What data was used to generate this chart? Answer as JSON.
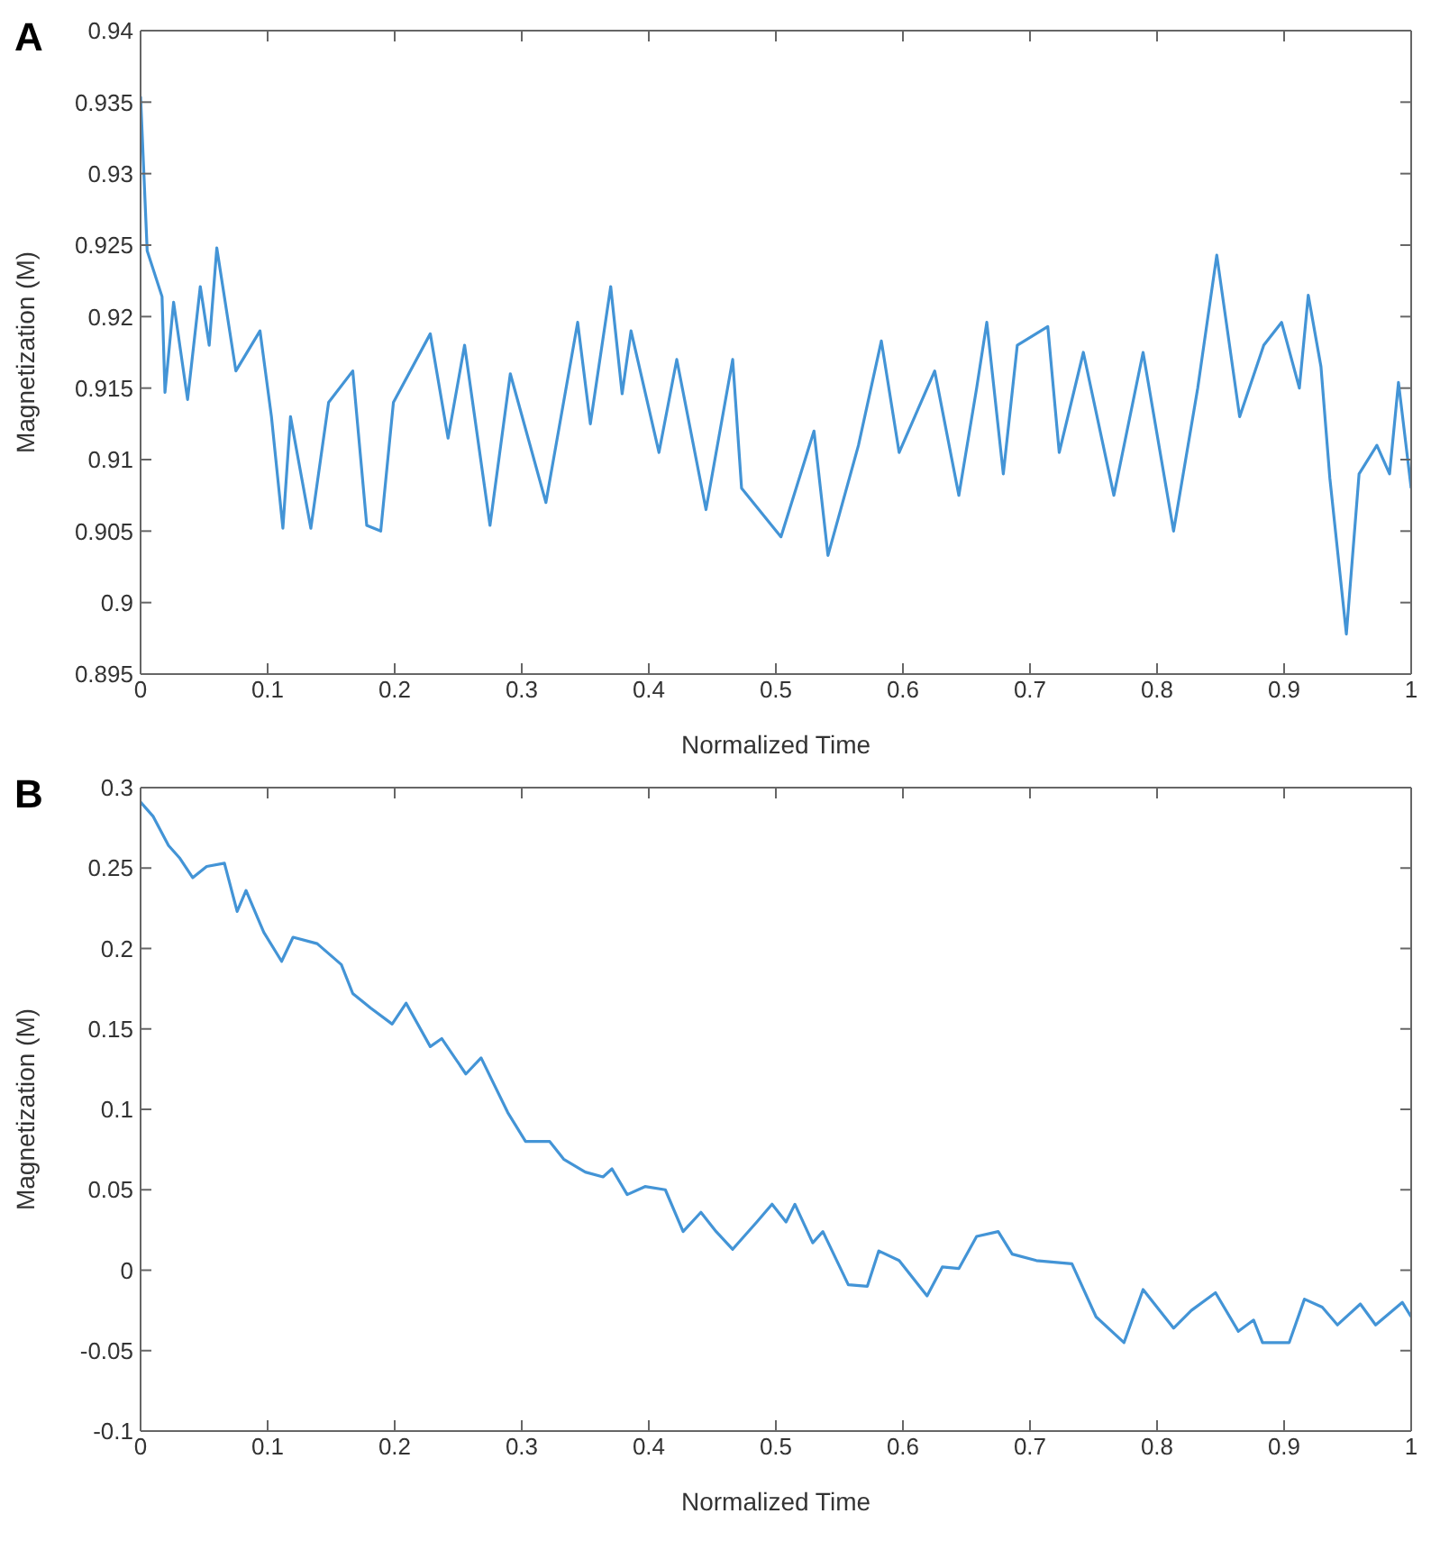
{
  "chart_data": [
    {
      "type": "line",
      "title": "A",
      "xlabel": "Normalized Time",
      "ylabel": "Magnetization (M)",
      "xlim": [
        0,
        1
      ],
      "xticks": [
        0,
        0.1,
        0.2,
        0.3,
        0.4,
        0.5,
        0.6,
        0.7,
        0.8,
        0.9,
        1
      ],
      "ylim": [
        0.895,
        0.94
      ],
      "yticks": [
        0.895,
        0.9,
        0.905,
        0.91,
        0.915,
        0.92,
        0.925,
        0.93,
        0.935,
        0.94
      ],
      "grid": false,
      "legend": false,
      "marker": "none",
      "line_style": "solid",
      "series": [
        {
          "color": "#4394d6",
          "x": [
            0,
            0.0052,
            0.0169,
            0.0192,
            0.026,
            0.037,
            0.047,
            0.054,
            0.06,
            0.075,
            0.094,
            0.103,
            0.112,
            0.118,
            0.134,
            0.148,
            0.167,
            0.178,
            0.189,
            0.199,
            0.228,
            0.242,
            0.255,
            0.275,
            0.291,
            0.319,
            0.344,
            0.354,
            0.37,
            0.379,
            0.386,
            0.408,
            0.422,
            0.445,
            0.466,
            0.473,
            0.504,
            0.53,
            0.541,
            0.565,
            0.583,
            0.597,
            0.625,
            0.644,
            0.658,
            0.666,
            0.679,
            0.69,
            0.714,
            0.723,
            0.742,
            0.766,
            0.789,
            0.813,
            0.832,
            0.847,
            0.865,
            0.884,
            0.898,
            0.912,
            0.919,
            0.929,
            0.936,
            0.949,
            0.959,
            0.973,
            0.983,
            0.99,
            1
          ],
          "values": [
            0.9354,
            0.9246,
            0.9214,
            0.9147,
            0.921,
            0.9142,
            0.9221,
            0.918,
            0.9248,
            0.9162,
            0.919,
            0.913,
            0.9052,
            0.913,
            0.9052,
            0.914,
            0.9162,
            0.9054,
            0.905,
            0.914,
            0.9188,
            0.9115,
            0.918,
            0.9054,
            0.916,
            0.907,
            0.9196,
            0.9125,
            0.9221,
            0.9146,
            0.919,
            0.9105,
            0.917,
            0.9065,
            0.917,
            0.908,
            0.9046,
            0.912,
            0.9033,
            0.911,
            0.9183,
            0.9105,
            0.9162,
            0.9075,
            0.915,
            0.9196,
            0.909,
            0.918,
            0.9193,
            0.9105,
            0.9175,
            0.9075,
            0.9175,
            0.905,
            0.915,
            0.9243,
            0.913,
            0.918,
            0.9196,
            0.915,
            0.9215,
            0.9165,
            0.9087,
            0.8978,
            0.909,
            0.911,
            0.909,
            0.9154,
            0.908
          ]
        }
      ]
    },
    {
      "type": "line",
      "title": "B",
      "xlabel": "Normalized Time",
      "ylabel": "Magnetization (M)",
      "xlim": [
        0,
        1
      ],
      "xticks": [
        0,
        0.1,
        0.2,
        0.3,
        0.4,
        0.5,
        0.6,
        0.7,
        0.8,
        0.9,
        1
      ],
      "ylim": [
        -0.1,
        0.3
      ],
      "yticks": [
        -0.1,
        -0.05,
        0,
        0.05,
        0.1,
        0.15,
        0.2,
        0.25,
        0.3
      ],
      "grid": false,
      "legend": false,
      "marker": "none",
      "line_style": "solid",
      "series": [
        {
          "color": "#4394d6",
          "x": [
            0,
            0.01,
            0.022,
            0.031,
            0.041,
            0.052,
            0.066,
            0.076,
            0.083,
            0.097,
            0.111,
            0.12,
            0.139,
            0.158,
            0.167,
            0.181,
            0.198,
            0.209,
            0.228,
            0.237,
            0.256,
            0.268,
            0.289,
            0.303,
            0.322,
            0.333,
            0.35,
            0.364,
            0.371,
            0.383,
            0.397,
            0.413,
            0.427,
            0.441,
            0.453,
            0.466,
            0.485,
            0.497,
            0.508,
            0.515,
            0.529,
            0.537,
            0.557,
            0.572,
            0.581,
            0.597,
            0.619,
            0.631,
            0.644,
            0.658,
            0.675,
            0.686,
            0.705,
            0.733,
            0.752,
            0.774,
            0.789,
            0.813,
            0.827,
            0.846,
            0.864,
            0.876,
            0.883,
            0.904,
            0.916,
            0.93,
            0.942,
            0.96,
            0.972,
            0.993,
            1
          ],
          "values": [
            0.291,
            0.282,
            0.264,
            0.256,
            0.244,
            0.251,
            0.253,
            0.223,
            0.236,
            0.21,
            0.192,
            0.207,
            0.203,
            0.19,
            0.172,
            0.163,
            0.153,
            0.166,
            0.139,
            0.144,
            0.122,
            0.132,
            0.098,
            0.08,
            0.08,
            0.069,
            0.061,
            0.058,
            0.063,
            0.047,
            0.052,
            0.05,
            0.024,
            0.036,
            0.024,
            0.013,
            0.03,
            0.041,
            0.03,
            0.041,
            0.017,
            0.024,
            -0.009,
            -0.01,
            0.012,
            0.006,
            -0.016,
            0.002,
            0.001,
            0.021,
            0.024,
            0.01,
            0.006,
            0.004,
            -0.029,
            -0.045,
            -0.012,
            -0.036,
            -0.025,
            -0.014,
            -0.038,
            -0.031,
            -0.045,
            -0.045,
            -0.018,
            -0.023,
            -0.034,
            -0.021,
            -0.034,
            -0.02,
            -0.029
          ]
        }
      ]
    }
  ]
}
